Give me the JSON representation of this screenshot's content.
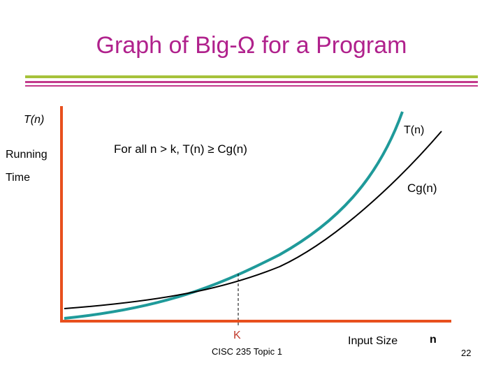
{
  "slide": {
    "title": "Graph of Big-Ω for a Program",
    "y_axis_symbol": "T(n)",
    "y_axis_label_line1": "Running",
    "y_axis_label_line2": "Time",
    "x_axis_label": "Input Size",
    "x_axis_symbol": "n",
    "statement": "For all n > k, T(n) ≥ Cg(n)",
    "crossover_label": "K",
    "footer": "CISC 235 Topic 1",
    "page_number": "22"
  },
  "curves": [
    {
      "name": "T(n)",
      "color": "#1f9a9a"
    },
    {
      "name": "Cg(n)",
      "color": "#000000"
    }
  ],
  "colors": {
    "title": "#b0218c",
    "axes": "#e8501e",
    "crossover_label": "#c0392b",
    "rule_green": "#a6c23a",
    "rule_pink": "#c23a8c"
  }
}
